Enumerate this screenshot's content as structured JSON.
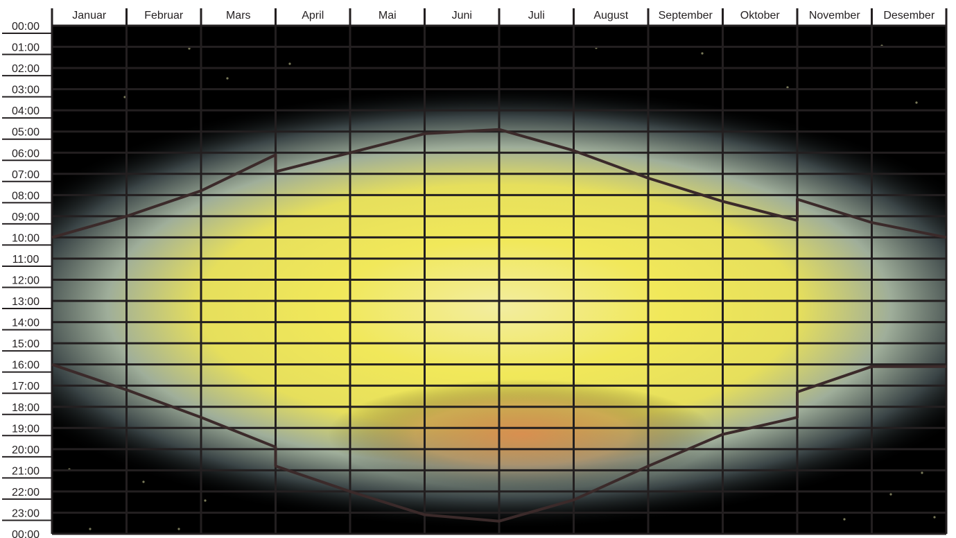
{
  "chart_data": {
    "type": "heatmap",
    "title": "",
    "xlabel": "",
    "ylabel": "",
    "categories": [
      "Januar",
      "Februar",
      "Mars",
      "April",
      "Mai",
      "Juni",
      "Juli",
      "August",
      "September",
      "Oktober",
      "November",
      "Desember"
    ],
    "hour_labels": [
      "00:00",
      "01:00",
      "02:00",
      "03:00",
      "04:00",
      "05:00",
      "06:00",
      "07:00",
      "08:00",
      "09:00",
      "10:00",
      "11:00",
      "12:00",
      "13:00",
      "14:00",
      "15:00",
      "16:00",
      "17:00",
      "18:00",
      "19:00",
      "20:00",
      "21:00",
      "22:00",
      "23:00",
      "00:00"
    ],
    "series": [
      {
        "role": "sunrise",
        "x": [
          0,
          1,
          2,
          3,
          3,
          4,
          5,
          6,
          7,
          8,
          9,
          10,
          10,
          11,
          12
        ],
        "y": [
          10.0,
          9.0,
          7.8,
          6.1,
          6.9,
          6.0,
          5.1,
          4.9,
          5.9,
          7.2,
          8.3,
          9.2,
          8.2,
          9.3,
          10.0
        ]
      },
      {
        "role": "sunset",
        "x": [
          0,
          1,
          2,
          3,
          3,
          4,
          5,
          6,
          7,
          8,
          9,
          10,
          10,
          11,
          12
        ],
        "y": [
          16.0,
          17.2,
          18.5,
          19.9,
          20.8,
          22.0,
          23.1,
          23.4,
          22.4,
          20.8,
          19.3,
          18.5,
          17.3,
          16.1,
          16.1
        ]
      }
    ],
    "colors": {
      "night": "#000000",
      "daylight": "#f2e95a",
      "twilight": "#8aa7ad",
      "dusk": "#d88a52",
      "grid": "#231f20",
      "curve": "#3b2a2a"
    }
  }
}
